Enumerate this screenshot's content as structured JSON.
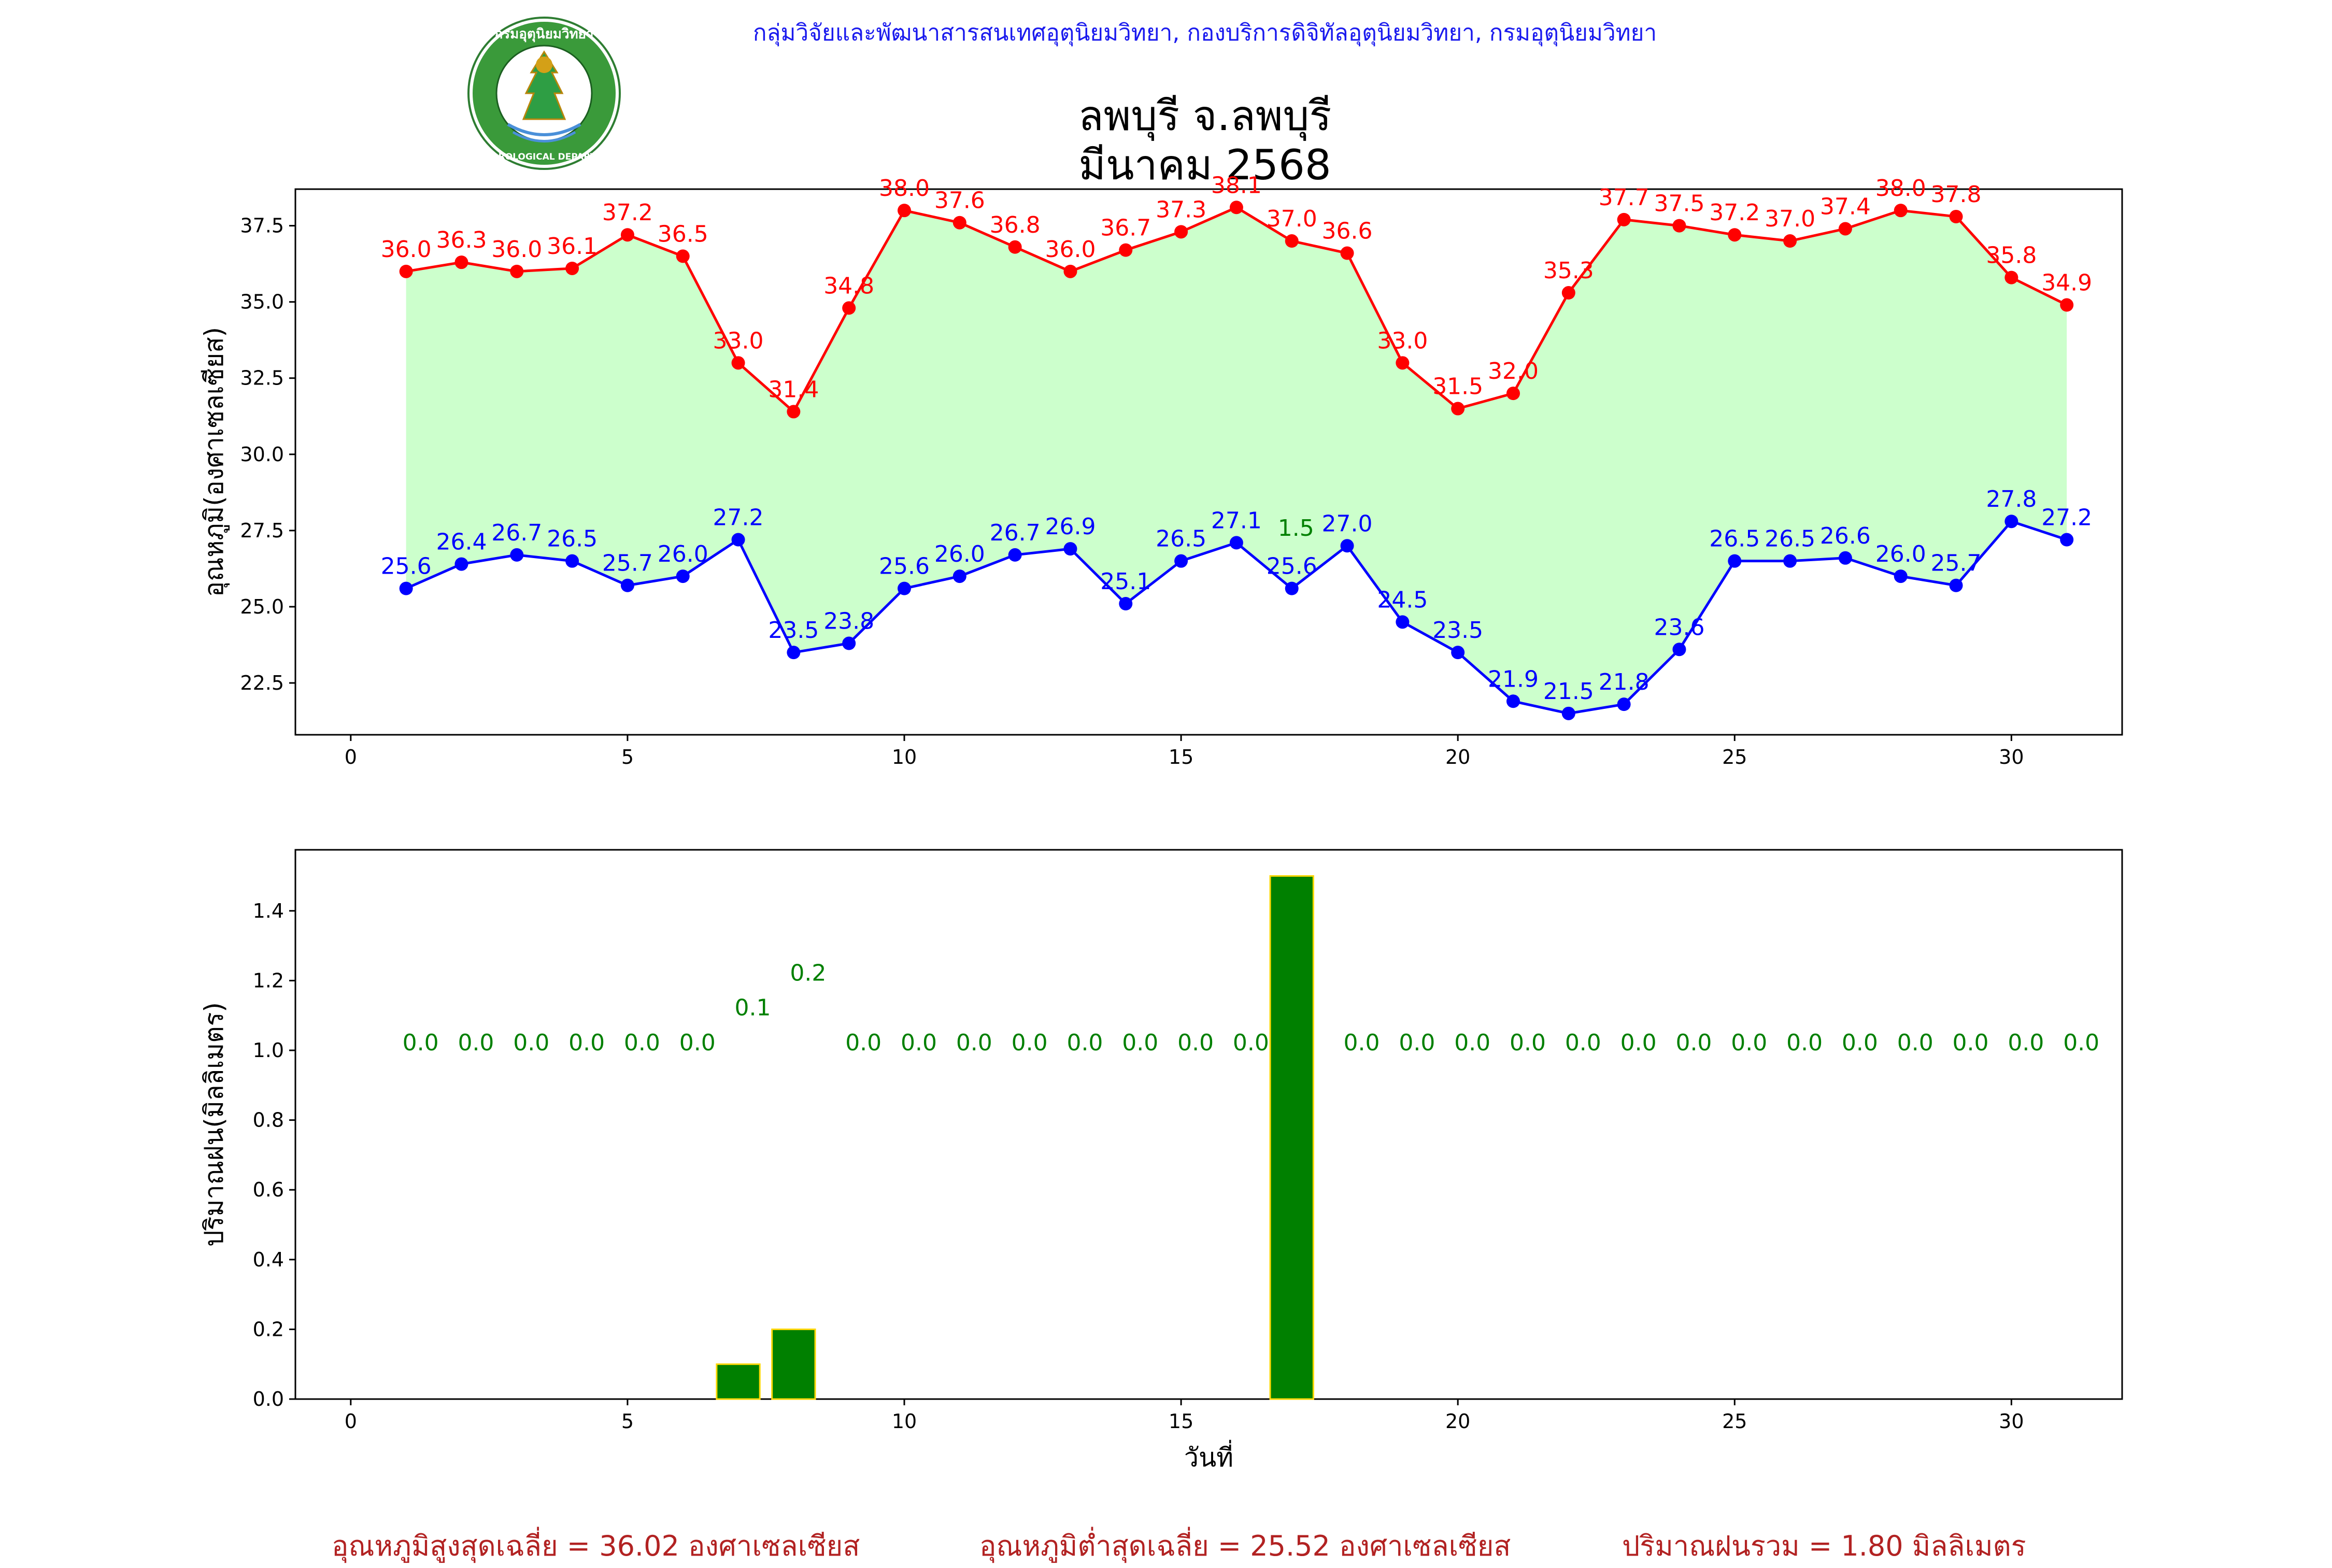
{
  "header": {
    "department_line": "กลุ่มวิจัยและพัฒนาสารสนเทศอุตุนิยมวิทยา, กองบริการดิจิทัลอุตุนิยมวิทยา, กรมอุตุนิยมวิทยา",
    "station": "ลพบุรี จ.ลพบุรี",
    "month": "มีนาคม 2568",
    "logo_text_top": "กรมอุตุนิยมวิทยา",
    "logo_text_bottom": "METEOROLOGICAL DEPARTMENT"
  },
  "summary": {
    "avg_max": "อุณหภูมิสูงสุดเฉลี่ย = 36.02 องศาเซลเซียส",
    "avg_min": "อุณหภูมิต่ำสุดเฉลี่ย = 25.52 องศาเซลเซียส",
    "total_rain": "ปริมาณฝนรวม = 1.80 มิลลิเมตร"
  },
  "colors": {
    "max_line": "#ff0000",
    "min_line": "#0000ff",
    "fill": "#ccffcc",
    "rain_bar": "#008000",
    "rain_edge": "#ffd700",
    "rain_label": "#008000",
    "summary_text": "#b22222"
  },
  "chart_data": [
    {
      "type": "line",
      "ylabel": "อุณหภูมิ(องศาเซลเซียส)",
      "xlabel": "",
      "xlim": [
        -1,
        32
      ],
      "ylim": [
        20.8,
        38.7
      ],
      "xticks": [
        0,
        5,
        10,
        15,
        20,
        25,
        30
      ],
      "yticks": [
        22.5,
        25.0,
        27.5,
        30.0,
        32.5,
        35.0,
        37.5
      ],
      "x": [
        1,
        2,
        3,
        4,
        5,
        6,
        7,
        8,
        9,
        10,
        11,
        12,
        13,
        14,
        15,
        16,
        17,
        18,
        19,
        20,
        21,
        22,
        23,
        24,
        25,
        26,
        27,
        28,
        29,
        30,
        31
      ],
      "series": [
        {
          "values": [
            36.0,
            36.3,
            36.0,
            36.1,
            37.2,
            36.5,
            33.0,
            31.4,
            34.8,
            38.0,
            37.6,
            36.8,
            36.0,
            36.7,
            37.3,
            38.1,
            37.0,
            36.6,
            33.0,
            31.5,
            32.0,
            35.3,
            37.7,
            37.5,
            37.2,
            37.0,
            37.4,
            38.0,
            37.8,
            35.8,
            34.9
          ]
        },
        {
          "values": [
            25.6,
            26.4,
            26.7,
            26.5,
            25.7,
            26.0,
            27.2,
            23.5,
            23.8,
            25.6,
            26.0,
            26.7,
            26.9,
            25.1,
            26.5,
            27.1,
            25.6,
            27.0,
            24.5,
            23.5,
            21.9,
            21.5,
            21.8,
            23.6,
            26.5,
            26.5,
            26.6,
            26.0,
            25.7,
            27.8,
            27.2
          ]
        }
      ],
      "annotations": [
        {
          "x": 17,
          "y": 27.5,
          "text": "1.5"
        }
      ]
    },
    {
      "type": "bar",
      "ylabel": "ปริมาณฝน(มิลลิเมตร)",
      "xlabel": "วันที่",
      "xlim": [
        -1,
        32
      ],
      "ylim": [
        0,
        1.575
      ],
      "xticks": [
        0,
        5,
        10,
        15,
        20,
        25,
        30
      ],
      "yticks": [
        0.0,
        0.2,
        0.4,
        0.6,
        0.8,
        1.0,
        1.2,
        1.4
      ],
      "x": [
        1,
        2,
        3,
        4,
        5,
        6,
        7,
        8,
        9,
        10,
        11,
        12,
        13,
        14,
        15,
        16,
        17,
        18,
        19,
        20,
        21,
        22,
        23,
        24,
        25,
        26,
        27,
        28,
        29,
        30,
        31
      ],
      "values": [
        0.0,
        0.0,
        0.0,
        0.0,
        0.0,
        0.0,
        0.1,
        0.2,
        0.0,
        0.0,
        0.0,
        0.0,
        0.0,
        0.0,
        0.0,
        0.0,
        1.5,
        0.0,
        0.0,
        0.0,
        0.0,
        0.0,
        0.0,
        0.0,
        0.0,
        0.0,
        0.0,
        0.0,
        0.0,
        0.0,
        0.0
      ],
      "bar_labels": [
        "0.0",
        "0.0",
        "0.0",
        "0.0",
        "0.0",
        "0.0",
        "0.1",
        "0.2",
        "0.0",
        "0.0",
        "0.0",
        "0.0",
        "0.0",
        "0.0",
        "0.0",
        "0.0",
        "",
        "0.0",
        "0.0",
        "0.0",
        "0.0",
        "0.0",
        "0.0",
        "0.0",
        "0.0",
        "0.0",
        "0.0",
        "0.0",
        "0.0",
        "0.0",
        "0.0"
      ]
    }
  ]
}
